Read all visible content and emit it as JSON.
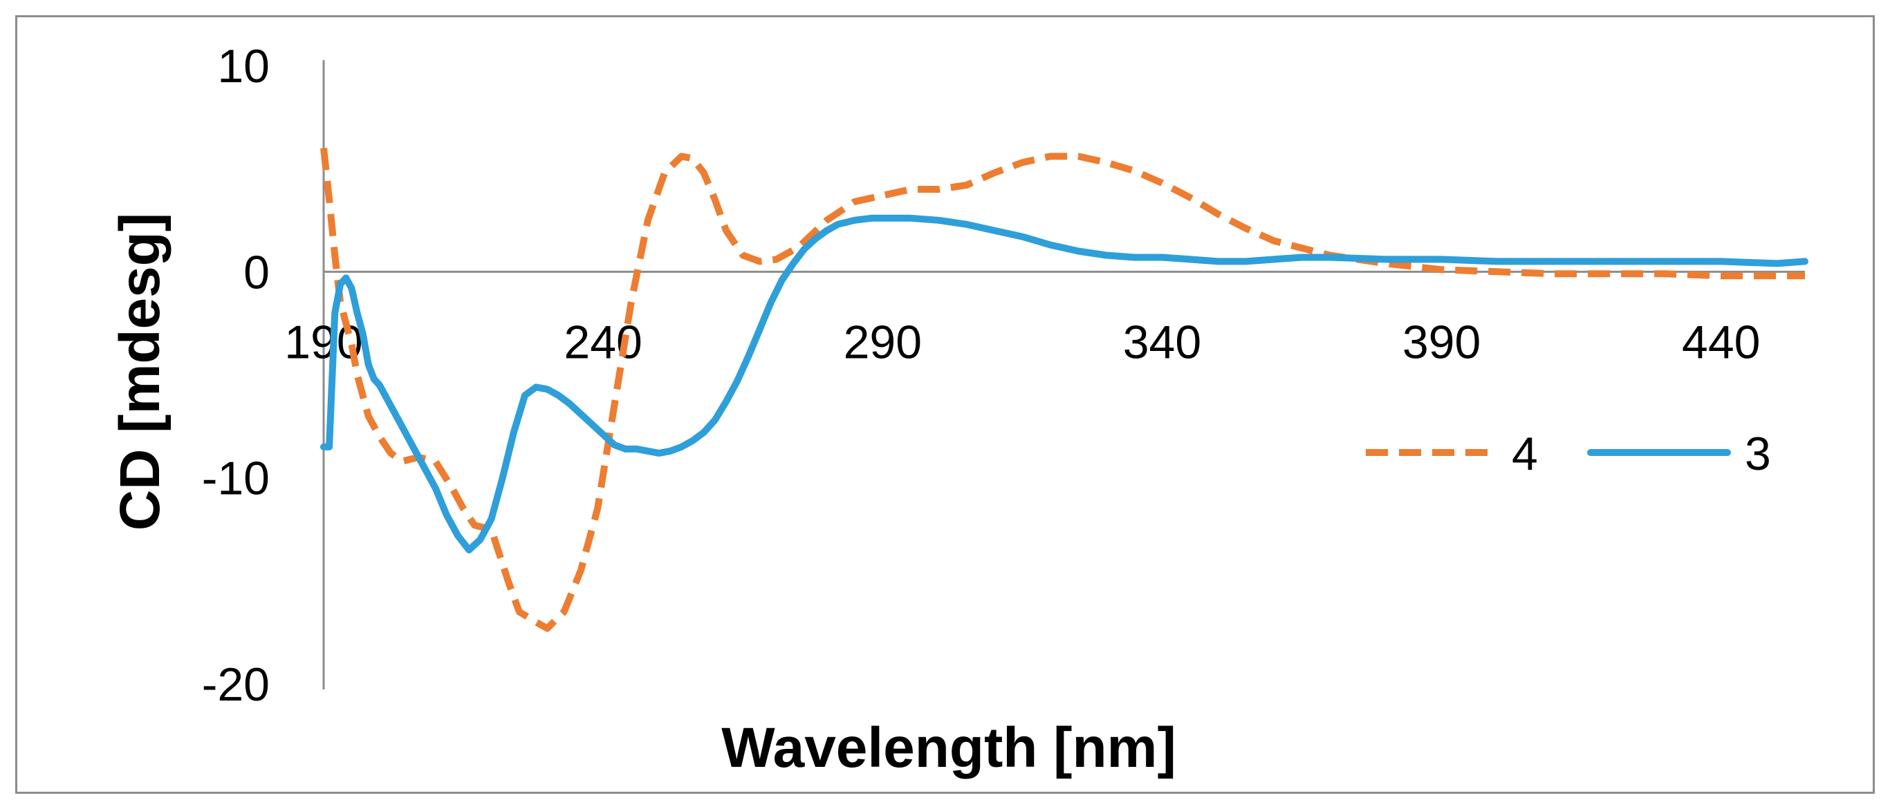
{
  "chart_data": {
    "type": "line",
    "xlabel": "Wavelength [nm]",
    "ylabel": "CD [mdesg]",
    "xlim": [
      190,
      455
    ],
    "ylim": [
      -20,
      10
    ],
    "xticks": [
      190,
      240,
      290,
      340,
      390,
      440
    ],
    "yticks": [
      -20,
      -10,
      0,
      10
    ],
    "grid": false,
    "legend_position": "right",
    "series": [
      {
        "name": "4",
        "style": "dashed",
        "color": "#ED7D31",
        "x": [
          190,
          191,
          192,
          193,
          194,
          195,
          196,
          198,
          200,
          202,
          204,
          207,
          210,
          213,
          215,
          217,
          220,
          223,
          225,
          228,
          230,
          233,
          236,
          239,
          242,
          245,
          248,
          251,
          254,
          256,
          258,
          260,
          262,
          265,
          268,
          271,
          275,
          280,
          285,
          290,
          295,
          300,
          305,
          310,
          315,
          320,
          325,
          330,
          335,
          340,
          345,
          350,
          355,
          360,
          370,
          380,
          390,
          400,
          410,
          420,
          430,
          440,
          450,
          455
        ],
        "y": [
          6,
          3.5,
          0.8,
          -1.5,
          -2.5,
          -3.5,
          -5,
          -7,
          -8,
          -8.8,
          -9.2,
          -9,
          -9.2,
          -10.5,
          -11.5,
          -12.3,
          -12.5,
          -15,
          -16.5,
          -17,
          -17.3,
          -16.5,
          -14.5,
          -11.5,
          -6.5,
          -1.5,
          2.5,
          4.8,
          5.6,
          5.5,
          4.8,
          3.5,
          2,
          0.8,
          0.5,
          0.6,
          1.2,
          2.5,
          3.4,
          3.7,
          4,
          4,
          4.2,
          4.8,
          5.3,
          5.6,
          5.6,
          5.3,
          4.9,
          4.3,
          3.6,
          2.8,
          2.1,
          1.5,
          0.8,
          0.4,
          0.1,
          0,
          -0.1,
          -0.1,
          -0.1,
          -0.2,
          -0.2,
          -0.2
        ]
      },
      {
        "name": "3",
        "style": "solid",
        "color": "#2E9FD9",
        "x": [
          190,
          191,
          192,
          193,
          194,
          195,
          196,
          197,
          198,
          199,
          200,
          202,
          204,
          206,
          208,
          210,
          212,
          214,
          216,
          218,
          220,
          222,
          224,
          226,
          228,
          230,
          232,
          234,
          236,
          238,
          240,
          242,
          244,
          246,
          248,
          250,
          252,
          254,
          256,
          258,
          260,
          262,
          264,
          266,
          268,
          270,
          272,
          274,
          276,
          278,
          280,
          282,
          285,
          288,
          291,
          295,
          300,
          305,
          310,
          315,
          320,
          325,
          330,
          335,
          340,
          345,
          350,
          355,
          360,
          365,
          370,
          380,
          390,
          400,
          410,
          420,
          430,
          440,
          450,
          455
        ],
        "y": [
          -8.5,
          -8.5,
          -2,
          -0.6,
          -0.3,
          -0.8,
          -2,
          -3,
          -4.5,
          -5.2,
          -5.5,
          -6.5,
          -7.5,
          -8.5,
          -9.5,
          -10.5,
          -11.8,
          -12.8,
          -13.5,
          -13,
          -12,
          -10,
          -7.8,
          -6,
          -5.6,
          -5.7,
          -6,
          -6.4,
          -6.9,
          -7.4,
          -7.9,
          -8.4,
          -8.6,
          -8.6,
          -8.7,
          -8.8,
          -8.7,
          -8.5,
          -8.2,
          -7.8,
          -7.2,
          -6.3,
          -5.3,
          -4.1,
          -2.8,
          -1.5,
          -0.4,
          0.4,
          1.1,
          1.6,
          2,
          2.3,
          2.5,
          2.6,
          2.6,
          2.6,
          2.5,
          2.3,
          2,
          1.7,
          1.3,
          1,
          0.8,
          0.7,
          0.7,
          0.6,
          0.5,
          0.5,
          0.6,
          0.7,
          0.7,
          0.6,
          0.6,
          0.5,
          0.5,
          0.5,
          0.5,
          0.5,
          0.4,
          0.5
        ]
      }
    ]
  }
}
